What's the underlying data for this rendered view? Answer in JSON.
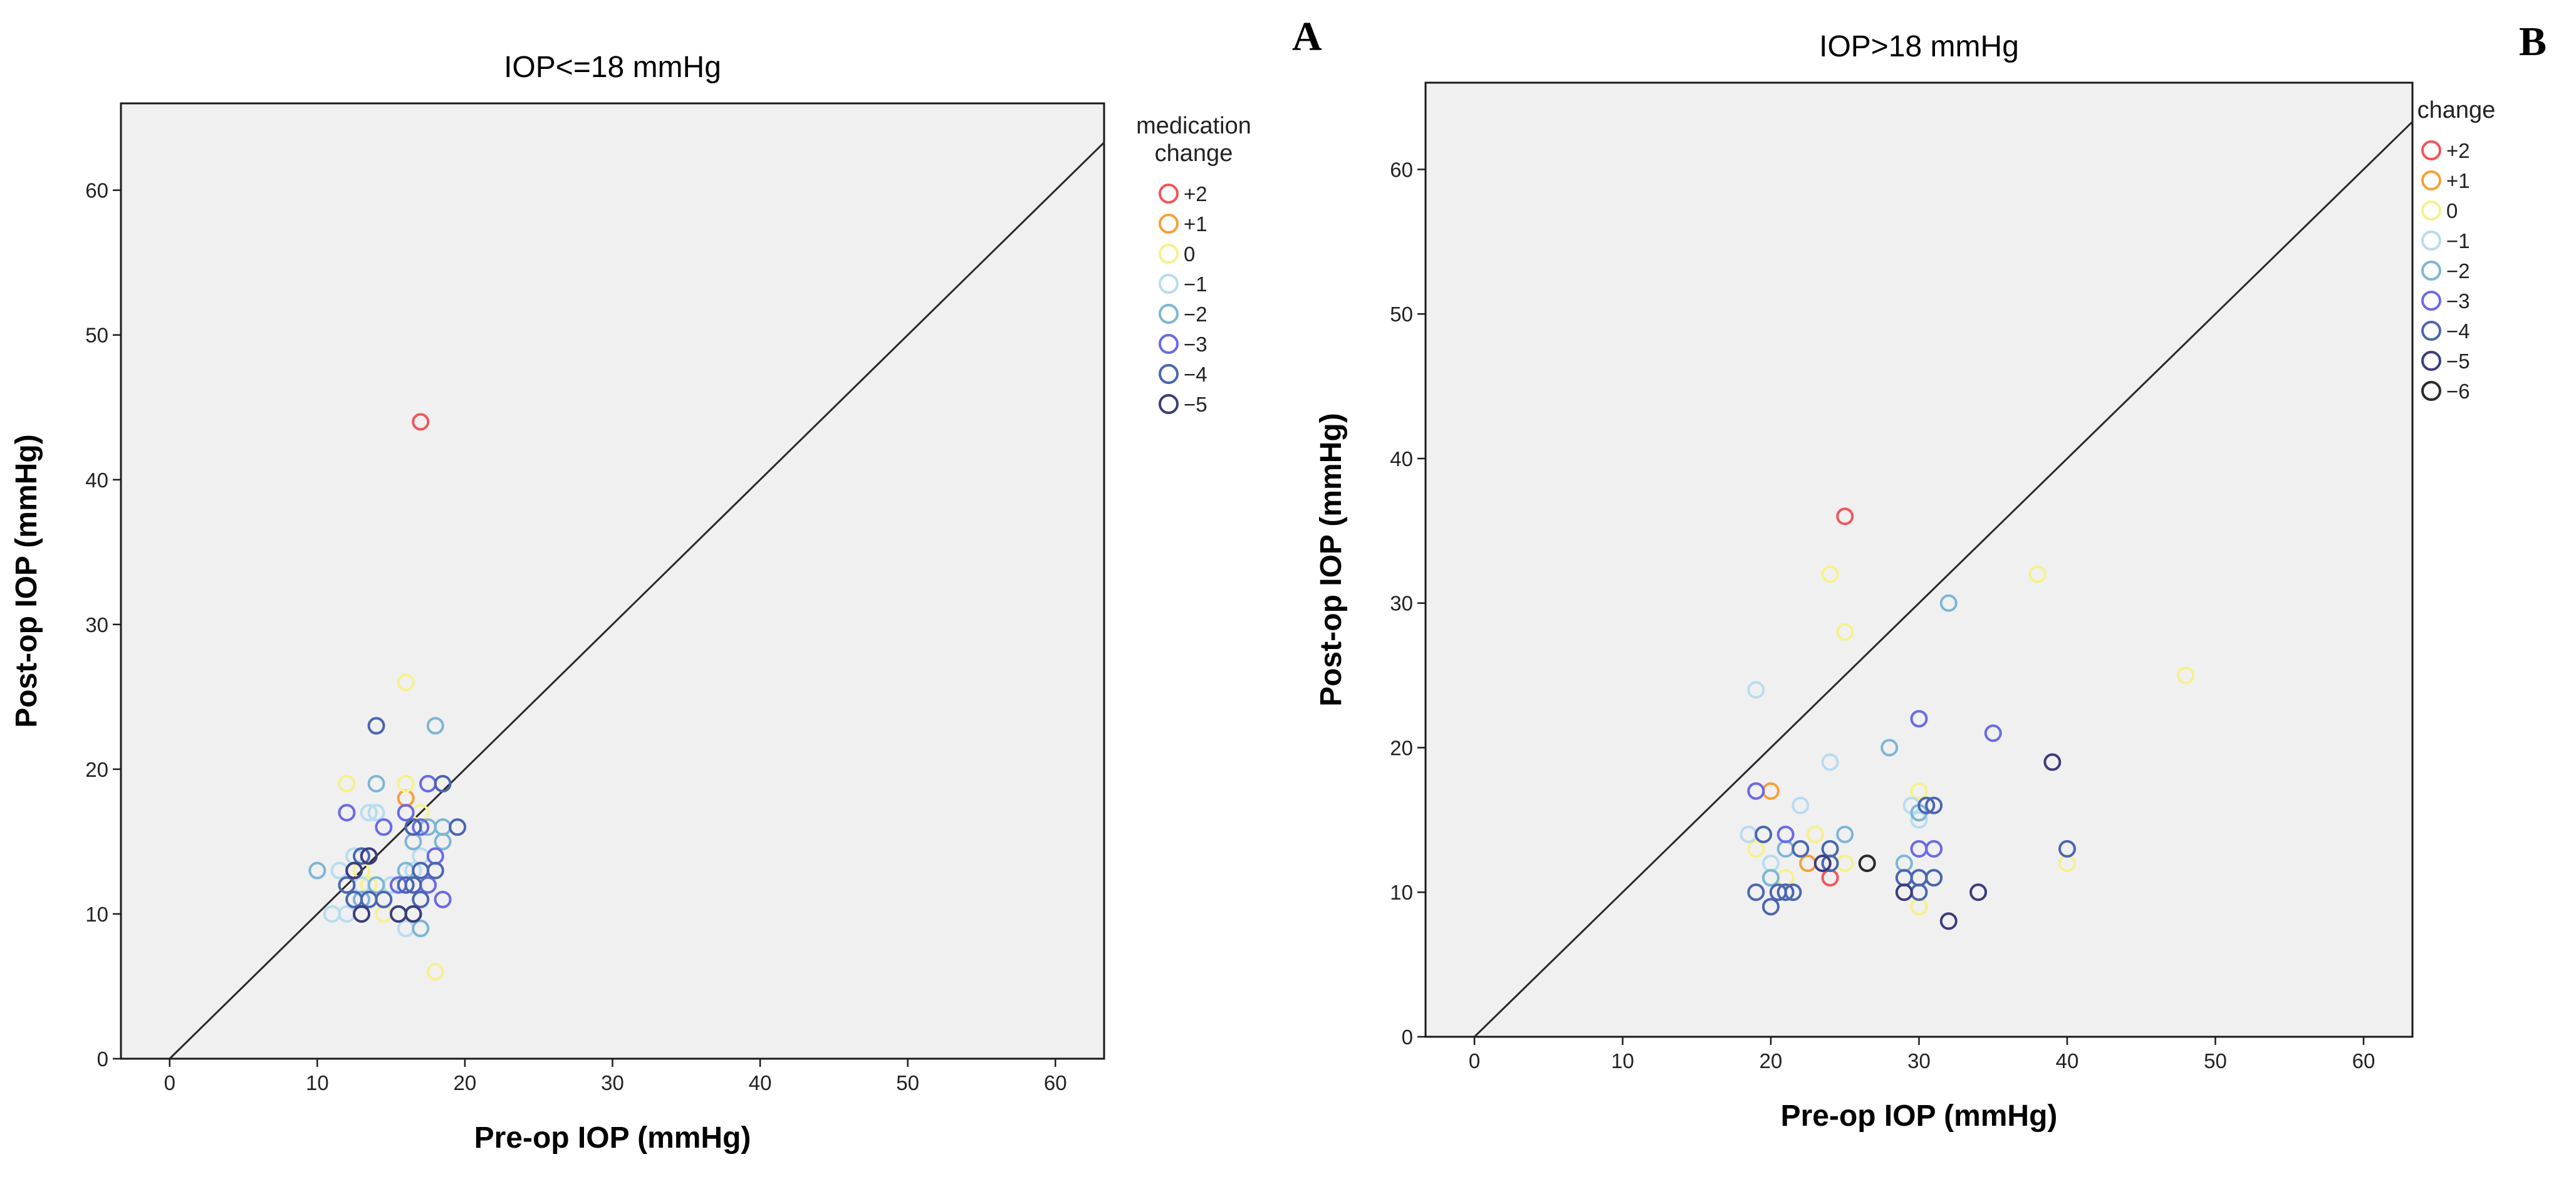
{
  "figure_letters": [
    "A",
    "B"
  ],
  "chart_data": [
    {
      "type": "scatter",
      "title": "IOP<=18 mmHg",
      "xlabel": "Pre-op IOP (mmHg)",
      "ylabel": "Post-op IOP (mmHg)",
      "xlim": [
        -3.3,
        63.3
      ],
      "ylim": [
        0,
        66
      ],
      "xticks": [
        0,
        10,
        20,
        30,
        40,
        50,
        60
      ],
      "yticks": [
        0,
        10,
        20,
        30,
        40,
        50,
        60
      ],
      "reference_line": "y = x",
      "legend": {
        "title_lines": [
          "medication",
          "change"
        ],
        "entries": [
          {
            "label": "+2",
            "color": "#f0565a"
          },
          {
            "label": "+1",
            "color": "#f6a03a"
          },
          {
            "label": "0",
            "color": "#f6f18c"
          },
          {
            "label": "−1",
            "color": "#b8dcf0"
          },
          {
            "label": "−2",
            "color": "#7cb6d6"
          },
          {
            "label": "−3",
            "color": "#6a6ae6"
          },
          {
            "label": "−4",
            "color": "#4a66b0"
          },
          {
            "label": "−5",
            "color": "#3c3c7e"
          }
        ]
      },
      "series": [
        {
          "name": "+2",
          "points": [
            [
              17,
              44
            ]
          ]
        },
        {
          "name": "+1",
          "points": [
            [
              16,
              18
            ]
          ]
        },
        {
          "name": "0",
          "points": [
            [
              16,
              26
            ],
            [
              12,
              19
            ],
            [
              18,
              6
            ],
            [
              14.5,
              10
            ],
            [
              15,
              12
            ],
            [
              13,
              13
            ],
            [
              16,
              19
            ],
            [
              17,
              17
            ],
            [
              18.5,
              11
            ],
            [
              13.5,
              12
            ]
          ]
        },
        {
          "name": "−1",
          "points": [
            [
              11,
              10
            ],
            [
              12,
              10
            ],
            [
              11.5,
              13
            ],
            [
              13,
              12
            ],
            [
              14,
              17
            ],
            [
              14.5,
              16
            ],
            [
              15,
              12
            ],
            [
              16,
              9
            ],
            [
              17,
              14
            ],
            [
              12.5,
              14
            ],
            [
              13.5,
              17
            ],
            [
              16.5,
              13
            ]
          ]
        },
        {
          "name": "−2",
          "points": [
            [
              10,
              13
            ],
            [
              14,
              19
            ],
            [
              18,
              23
            ],
            [
              16,
              13
            ],
            [
              17,
              9
            ],
            [
              17.5,
              16
            ],
            [
              18.5,
              16
            ],
            [
              18.5,
              15
            ],
            [
              14,
              12
            ],
            [
              13,
              11
            ],
            [
              16.5,
              15
            ]
          ]
        },
        {
          "name": "−3",
          "points": [
            [
              12,
              17
            ],
            [
              16,
              17
            ],
            [
              17.5,
              19
            ],
            [
              18,
              14
            ],
            [
              18.5,
              11
            ],
            [
              14.5,
              16
            ],
            [
              15.5,
              12
            ],
            [
              17,
              16
            ],
            [
              17.5,
              12
            ]
          ]
        },
        {
          "name": "−4",
          "points": [
            [
              14,
              23
            ],
            [
              18.5,
              19
            ],
            [
              19.5,
              16
            ],
            [
              16.5,
              16
            ],
            [
              17,
              13
            ],
            [
              18,
              13
            ],
            [
              13,
              14
            ],
            [
              12,
              12
            ],
            [
              12.5,
              11
            ],
            [
              13.5,
              11
            ],
            [
              14.5,
              11
            ],
            [
              16,
              12
            ],
            [
              16.5,
              12
            ],
            [
              17,
              11
            ],
            [
              16.5,
              10
            ]
          ]
        },
        {
          "name": "−5",
          "points": [
            [
              12.5,
              13
            ],
            [
              13,
              10
            ],
            [
              13.5,
              14
            ],
            [
              15.5,
              10
            ],
            [
              16.5,
              10
            ]
          ]
        }
      ]
    },
    {
      "type": "scatter",
      "title": "IOP>18 mmHg",
      "xlabel": "Pre-op IOP (mmHg)",
      "ylabel": "Post-op IOP (mmHg)",
      "xlim": [
        -3.3,
        63.3
      ],
      "ylim": [
        0,
        66
      ],
      "xticks": [
        0,
        10,
        20,
        30,
        40,
        50,
        60
      ],
      "yticks": [
        0,
        10,
        20,
        30,
        40,
        50,
        60
      ],
      "reference_line": "y = x",
      "legend": {
        "title_lines": [
          "change"
        ],
        "entries": [
          {
            "label": "+2",
            "color": "#f0565a"
          },
          {
            "label": "+1",
            "color": "#f6a03a"
          },
          {
            "label": "0",
            "color": "#f6f18c"
          },
          {
            "label": "−1",
            "color": "#b8dcf0"
          },
          {
            "label": "−2",
            "color": "#7cb6d6"
          },
          {
            "label": "−3",
            "color": "#6a6ae6"
          },
          {
            "label": "−4",
            "color": "#4a66b0"
          },
          {
            "label": "−5",
            "color": "#3c3c7e"
          },
          {
            "label": "−6",
            "color": "#2a2a2a"
          }
        ]
      },
      "series": [
        {
          "name": "+2",
          "points": [
            [
              25,
              36
            ],
            [
              24,
              11
            ]
          ]
        },
        {
          "name": "+1",
          "points": [
            [
              20,
              17
            ],
            [
              22.5,
              12
            ]
          ]
        },
        {
          "name": "0",
          "points": [
            [
              24,
              32
            ],
            [
              25,
              28
            ],
            [
              38,
              32
            ],
            [
              48,
              25
            ],
            [
              40,
              12
            ],
            [
              30,
              17
            ],
            [
              30,
              9
            ],
            [
              19,
              13
            ],
            [
              21,
              11
            ],
            [
              23,
              14
            ],
            [
              25,
              12
            ]
          ]
        },
        {
          "name": "−1",
          "points": [
            [
              19,
              24
            ],
            [
              24,
              19
            ],
            [
              22,
              16
            ],
            [
              20,
              12
            ],
            [
              18.5,
              14
            ],
            [
              20,
              11
            ],
            [
              30,
              15
            ],
            [
              29.5,
              16
            ]
          ]
        },
        {
          "name": "−2",
          "points": [
            [
              32,
              30
            ],
            [
              28,
              20
            ],
            [
              25,
              14
            ],
            [
              29,
              12
            ],
            [
              30,
              15.5
            ],
            [
              21,
              13
            ],
            [
              20,
              11
            ]
          ]
        },
        {
          "name": "−3",
          "points": [
            [
              19,
              17
            ],
            [
              30,
              22
            ],
            [
              35,
              21
            ],
            [
              30,
              13
            ],
            [
              31,
              13
            ],
            [
              21,
              14
            ]
          ]
        },
        {
          "name": "−4",
          "points": [
            [
              19.5,
              14
            ],
            [
              20.5,
              10
            ],
            [
              21,
              10
            ],
            [
              30.5,
              16
            ],
            [
              31,
              16
            ],
            [
              24,
              13
            ],
            [
              24,
              12
            ],
            [
              19,
              10
            ],
            [
              20,
              9
            ],
            [
              29,
              11
            ],
            [
              30,
              11
            ],
            [
              31,
              11
            ],
            [
              30,
              10
            ],
            [
              40,
              13
            ],
            [
              22,
              13
            ],
            [
              21.5,
              10
            ]
          ]
        },
        {
          "name": "−5",
          "points": [
            [
              39,
              19
            ],
            [
              32,
              8
            ],
            [
              34,
              10
            ],
            [
              23.5,
              12
            ],
            [
              29,
              10
            ]
          ]
        },
        {
          "name": "−6",
          "points": [
            [
              26.5,
              12
            ]
          ]
        }
      ]
    }
  ]
}
